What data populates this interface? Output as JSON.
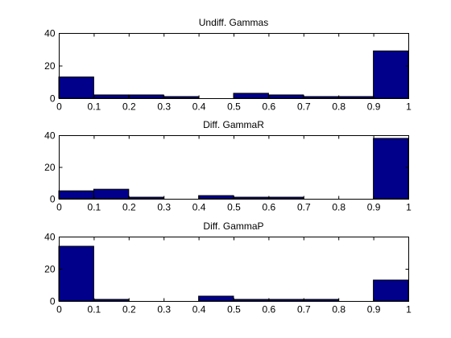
{
  "chart_data": [
    {
      "type": "bar",
      "title": "Undiff. Gammas",
      "bin_edges": [
        0,
        0.1,
        0.2,
        0.3,
        0.4,
        0.5,
        0.6,
        0.7,
        0.8,
        0.9,
        1
      ],
      "values": [
        13,
        2,
        2,
        1,
        0,
        3,
        2,
        1,
        1,
        29
      ],
      "xlim": [
        0,
        1
      ],
      "ylim": [
        0,
        40
      ],
      "xticks": [
        "0",
        "0.1",
        "0.2",
        "0.3",
        "0.4",
        "0.5",
        "0.6",
        "0.7",
        "0.8",
        "0.9",
        "1"
      ],
      "yticks": [
        "0",
        "20",
        "40"
      ],
      "bar_color": "#00008B",
      "grid": false
    },
    {
      "type": "bar",
      "title": "Diff. GammaR",
      "bin_edges": [
        0,
        0.1,
        0.2,
        0.3,
        0.4,
        0.5,
        0.6,
        0.7,
        0.8,
        0.9,
        1
      ],
      "values": [
        5,
        6,
        1,
        0,
        2,
        1,
        1,
        0,
        0,
        38
      ],
      "xlim": [
        0,
        1
      ],
      "ylim": [
        0,
        40
      ],
      "xticks": [
        "0",
        "0.1",
        "0.2",
        "0.3",
        "0.4",
        "0.5",
        "0.6",
        "0.7",
        "0.8",
        "0.9",
        "1"
      ],
      "yticks": [
        "0",
        "20",
        "40"
      ],
      "bar_color": "#00008B",
      "grid": false
    },
    {
      "type": "bar",
      "title": "Diff. GammaP",
      "bin_edges": [
        0,
        0.1,
        0.2,
        0.3,
        0.4,
        0.5,
        0.6,
        0.7,
        0.8,
        0.9,
        1
      ],
      "values": [
        34,
        1,
        0,
        0,
        3,
        1,
        1,
        1,
        0,
        13
      ],
      "xlim": [
        0,
        1
      ],
      "ylim": [
        0,
        40
      ],
      "xticks": [
        "0",
        "0.1",
        "0.2",
        "0.3",
        "0.4",
        "0.5",
        "0.6",
        "0.7",
        "0.8",
        "0.9",
        "1"
      ],
      "yticks": [
        "0",
        "20",
        "40"
      ],
      "bar_color": "#00008B",
      "grid": false
    }
  ]
}
